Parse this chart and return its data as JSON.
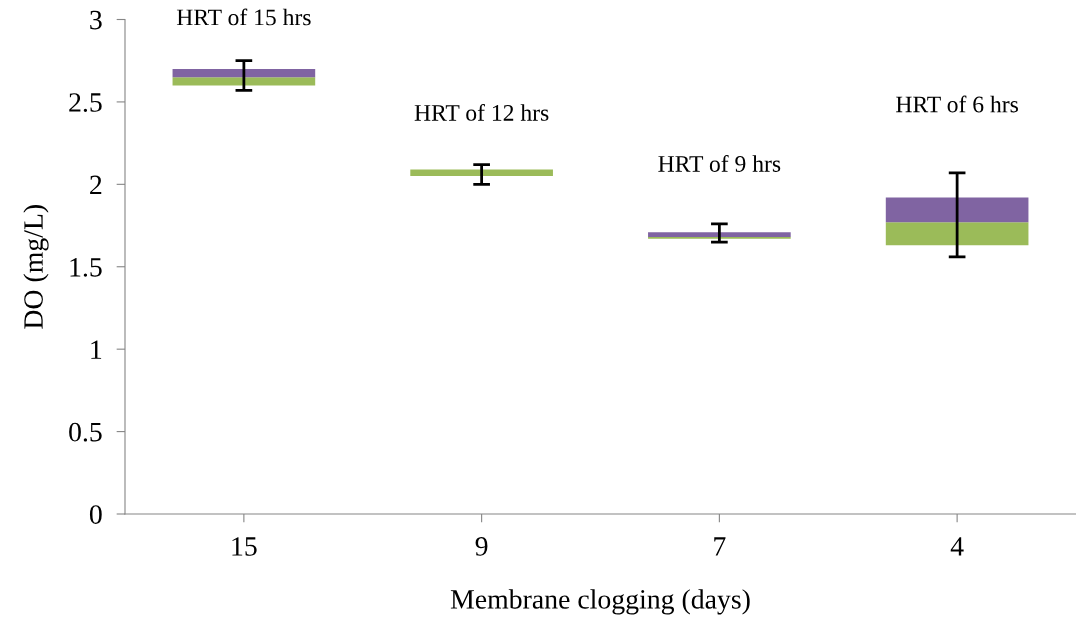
{
  "chart_data": {
    "type": "box",
    "xlabel": "Membrane clogging (days)",
    "ylabel": "DO (mg/L)",
    "categories": [
      "15",
      "9",
      "7",
      "4"
    ],
    "colors": [
      "#8064a2",
      "#8064a2",
      "#8064a2",
      "#8064a2"
    ],
    "series": [
      {
        "color": "#9bbb59",
        "boxes": [
          {
            "low": 2.57,
            "q1": 2.6,
            "median": 2.65,
            "q3": 2.7,
            "high": 2.75
          },
          {
            "low": 2.0,
            "q1": 2.05,
            "median": 2.09,
            "q3": 2.09,
            "high": 2.12
          },
          {
            "low": 1.65,
            "q1": 1.67,
            "median": 1.68,
            "q3": 1.71,
            "high": 1.76
          },
          {
            "low": 1.56,
            "q1": 1.63,
            "median": 1.77,
            "q3": 1.92,
            "high": 2.07
          }
        ]
      }
    ],
    "ylim": [
      0,
      3
    ],
    "yticks": [
      0,
      0.5,
      1,
      1.5,
      2,
      2.5,
      3
    ],
    "grid": false,
    "annotations": [
      "HRT of 15 hrs",
      "HRT of 12 hrs",
      "HRT of 9 hrs",
      "HRT of 6 hrs"
    ]
  }
}
